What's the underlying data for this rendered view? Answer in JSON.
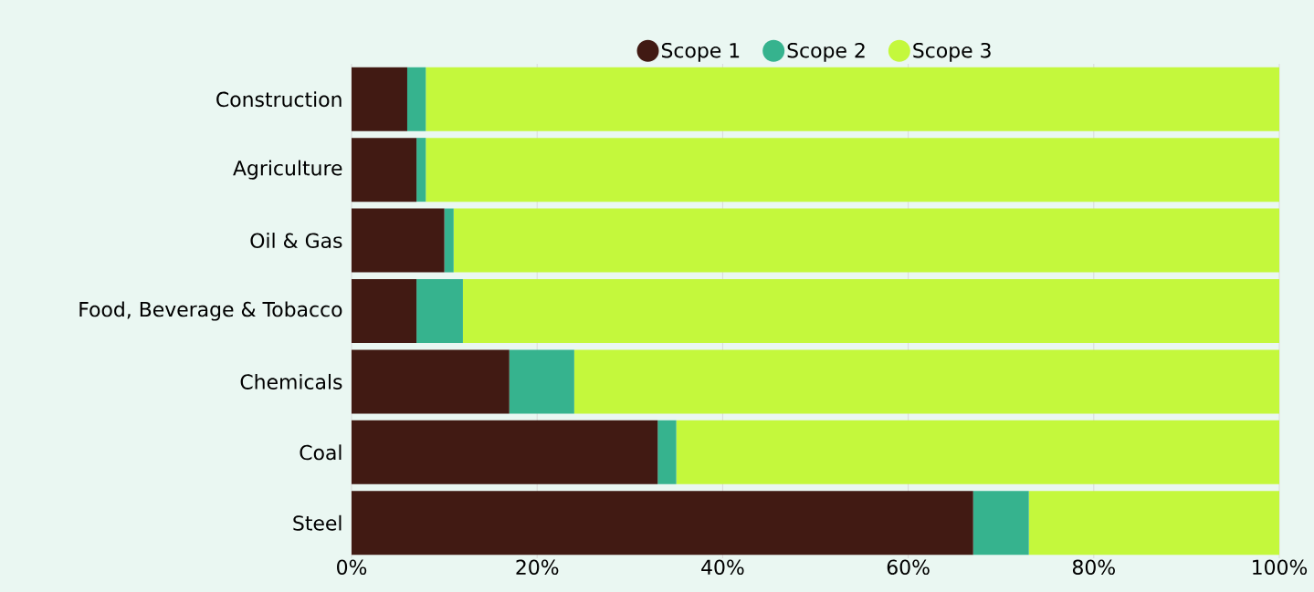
{
  "chart_data": {
    "type": "bar",
    "orientation": "horizontal",
    "stacked": true,
    "categories": [
      "Construction",
      "Agriculture",
      "Oil & Gas",
      "Food, Beverage & Tobacco",
      "Chemicals",
      "Coal",
      "Steel"
    ],
    "series": [
      {
        "name": "Scope 1",
        "color": "#411a13",
        "values": [
          6,
          7,
          10,
          7,
          17,
          33,
          67
        ]
      },
      {
        "name": "Scope 2",
        "color": "#36b38e",
        "values": [
          2,
          1,
          1,
          5,
          7,
          2,
          6
        ]
      },
      {
        "name": "Scope 3",
        "color": "#c4f83c",
        "values": [
          92,
          92,
          89,
          88,
          76,
          65,
          27
        ]
      }
    ],
    "xlim": [
      0,
      100
    ],
    "xticks": [
      {
        "value": 0,
        "label": "0%"
      },
      {
        "value": 20,
        "label": "20%"
      },
      {
        "value": 40,
        "label": "40%"
      },
      {
        "value": 60,
        "label": "60%"
      },
      {
        "value": 80,
        "label": "80%"
      },
      {
        "value": 100,
        "label": "100%"
      }
    ],
    "grid": "x",
    "legend": "top"
  }
}
